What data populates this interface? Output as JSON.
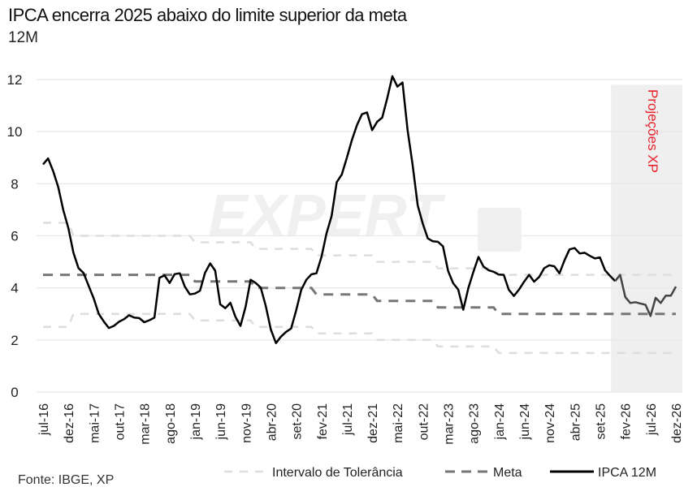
{
  "chart_data": {
    "type": "line",
    "title": "IPCA encerra 2025 abaixo do limite superior da meta",
    "subtitle": "12M",
    "source": "Fonte: IBGE, XP",
    "ylim": [
      0,
      12
    ],
    "yticks": [
      0,
      2,
      4,
      6,
      8,
      10,
      12
    ],
    "grid": true,
    "legend_position": "bottom-right",
    "projection_label": "Projeções XP",
    "projection_start": "dez-25",
    "watermark": "EXPERT XP",
    "start_month": "jul-16",
    "xtick_labels": [
      "jul-16",
      "dez-16",
      "mai-17",
      "out-17",
      "mar-18",
      "ago-18",
      "jan-19",
      "jun-19",
      "nov-19",
      "abr-20",
      "set-20",
      "fev-21",
      "jul-21",
      "dez-21",
      "mai-22",
      "out-22",
      "mar-23",
      "ago-23",
      "jan-24",
      "jun-24",
      "nov-24",
      "abr-25",
      "set-25",
      "fev-26",
      "jul-26",
      "dez-26"
    ],
    "series": [
      {
        "name": "Intervalo de Tolerância",
        "style": "light-dashed",
        "color": "#dddddd",
        "upper": [
          6.5,
          6.5,
          6.5,
          6.5,
          6.5,
          6.5,
          6,
          6,
          6,
          6,
          6,
          6,
          6,
          6,
          6,
          6,
          6,
          6,
          6,
          6,
          6,
          6,
          6,
          6,
          6,
          6,
          6,
          6,
          6,
          6,
          5.75,
          5.75,
          5.75,
          5.75,
          5.75,
          5.75,
          5.75,
          5.75,
          5.75,
          5.75,
          5.75,
          5.75,
          5.5,
          5.5,
          5.5,
          5.5,
          5.5,
          5.5,
          5.5,
          5.5,
          5.5,
          5.5,
          5.5,
          5.5,
          5.25,
          5.25,
          5.25,
          5.25,
          5.25,
          5.25,
          5.25,
          5.25,
          5.25,
          5.25,
          5.25,
          5.25,
          5,
          5,
          5,
          5,
          5,
          5,
          5,
          5,
          5,
          5,
          5,
          5,
          4.75,
          4.75,
          4.75,
          4.75,
          4.75,
          4.75,
          4.75,
          4.75,
          4.75,
          4.75,
          4.75,
          4.75,
          4.5,
          4.5,
          4.5,
          4.5,
          4.5,
          4.5,
          4.5,
          4.5,
          4.5,
          4.5,
          4.5,
          4.5,
          4.5,
          4.5,
          4.5,
          4.5,
          4.5,
          4.5,
          4.5,
          4.5,
          4.5,
          4.5,
          4.5,
          4.5,
          4.5,
          4.5,
          4.5,
          4.5,
          4.5,
          4.5,
          4.5,
          4.5,
          4.5,
          4.5,
          4.5,
          4.5
        ],
        "lower": [
          2.5,
          2.5,
          2.5,
          2.5,
          2.5,
          2.5,
          3,
          3,
          3,
          3,
          3,
          3,
          3,
          3,
          3,
          3,
          3,
          3,
          3,
          3,
          3,
          3,
          3,
          3,
          3,
          3,
          3,
          3,
          3,
          3,
          2.75,
          2.75,
          2.75,
          2.75,
          2.75,
          2.75,
          2.75,
          2.75,
          2.75,
          2.75,
          2.75,
          2.75,
          2.5,
          2.5,
          2.5,
          2.5,
          2.5,
          2.5,
          2.5,
          2.5,
          2.5,
          2.5,
          2.5,
          2.5,
          2.25,
          2.25,
          2.25,
          2.25,
          2.25,
          2.25,
          2.25,
          2.25,
          2.25,
          2.25,
          2.25,
          2.25,
          2,
          2,
          2,
          2,
          2,
          2,
          2,
          2,
          2,
          2,
          2,
          2,
          1.75,
          1.75,
          1.75,
          1.75,
          1.75,
          1.75,
          1.75,
          1.75,
          1.75,
          1.75,
          1.75,
          1.75,
          1.5,
          1.5,
          1.5,
          1.5,
          1.5,
          1.5,
          1.5,
          1.5,
          1.5,
          1.5,
          1.5,
          1.5,
          1.5,
          1.5,
          1.5,
          1.5,
          1.5,
          1.5,
          1.5,
          1.5,
          1.5,
          1.5,
          1.5,
          1.5,
          1.5,
          1.5,
          1.5,
          1.5,
          1.5,
          1.5,
          1.5,
          1.5,
          1.5,
          1.5,
          1.5,
          1.5
        ]
      },
      {
        "name": "Meta",
        "style": "dashed",
        "color": "#777777",
        "values": [
          4.5,
          4.5,
          4.5,
          4.5,
          4.5,
          4.5,
          4.5,
          4.5,
          4.5,
          4.5,
          4.5,
          4.5,
          4.5,
          4.5,
          4.5,
          4.5,
          4.5,
          4.5,
          4.5,
          4.5,
          4.5,
          4.5,
          4.5,
          4.5,
          4.5,
          4.5,
          4.5,
          4.5,
          4.5,
          4.5,
          4.25,
          4.25,
          4.25,
          4.25,
          4.25,
          4.25,
          4.25,
          4.25,
          4.25,
          4.25,
          4.25,
          4.25,
          4,
          4,
          4,
          4,
          4,
          4,
          4,
          4,
          4,
          4,
          4,
          4,
          3.75,
          3.75,
          3.75,
          3.75,
          3.75,
          3.75,
          3.75,
          3.75,
          3.75,
          3.75,
          3.75,
          3.75,
          3.5,
          3.5,
          3.5,
          3.5,
          3.5,
          3.5,
          3.5,
          3.5,
          3.5,
          3.5,
          3.5,
          3.5,
          3.25,
          3.25,
          3.25,
          3.25,
          3.25,
          3.25,
          3.25,
          3.25,
          3.25,
          3.25,
          3.25,
          3.25,
          3,
          3,
          3,
          3,
          3,
          3,
          3,
          3,
          3,
          3,
          3,
          3,
          3,
          3,
          3,
          3,
          3,
          3,
          3,
          3,
          3,
          3,
          3,
          3,
          3,
          3,
          3,
          3,
          3,
          3,
          3,
          3,
          3,
          3,
          3,
          3
        ]
      },
      {
        "name": "IPCA 12M",
        "style": "solid",
        "color": "#000000",
        "projection_color": "#444444",
        "values": [
          8.74,
          8.97,
          8.48,
          7.87,
          6.99,
          6.29,
          5.35,
          4.76,
          4.57,
          4.08,
          3.6,
          3.0,
          2.71,
          2.46,
          2.54,
          2.7,
          2.8,
          2.95,
          2.86,
          2.84,
          2.68,
          2.76,
          2.86,
          4.39,
          4.48,
          4.19,
          4.53,
          4.56,
          4.05,
          3.75,
          3.78,
          3.89,
          4.58,
          4.94,
          4.66,
          3.37,
          3.22,
          3.43,
          2.89,
          2.54,
          3.27,
          4.31,
          4.19,
          4.01,
          3.3,
          2.4,
          1.88,
          2.13,
          2.31,
          2.44,
          3.14,
          3.92,
          4.31,
          4.52,
          4.56,
          5.2,
          6.1,
          6.76,
          8.06,
          8.35,
          8.99,
          9.68,
          10.25,
          10.67,
          10.74,
          10.06,
          10.38,
          10.54,
          11.3,
          12.13,
          11.73,
          11.89,
          10.07,
          8.73,
          7.17,
          6.47,
          5.9,
          5.79,
          5.77,
          5.6,
          4.65,
          4.18,
          3.94,
          3.16,
          3.99,
          4.61,
          5.19,
          4.82,
          4.68,
          4.62,
          4.51,
          4.5,
          3.93,
          3.69,
          3.93,
          4.23,
          4.5,
          4.24,
          4.42,
          4.76,
          4.87,
          4.83,
          4.56,
          5.06,
          5.48,
          5.53,
          5.32,
          5.35,
          5.23,
          5.13,
          5.17,
          4.68,
          4.46,
          4.26,
          4.5,
          3.65,
          3.42,
          3.45,
          3.4,
          3.35,
          2.92,
          3.62,
          3.42,
          3.7,
          3.7,
          4.05
        ]
      }
    ]
  }
}
